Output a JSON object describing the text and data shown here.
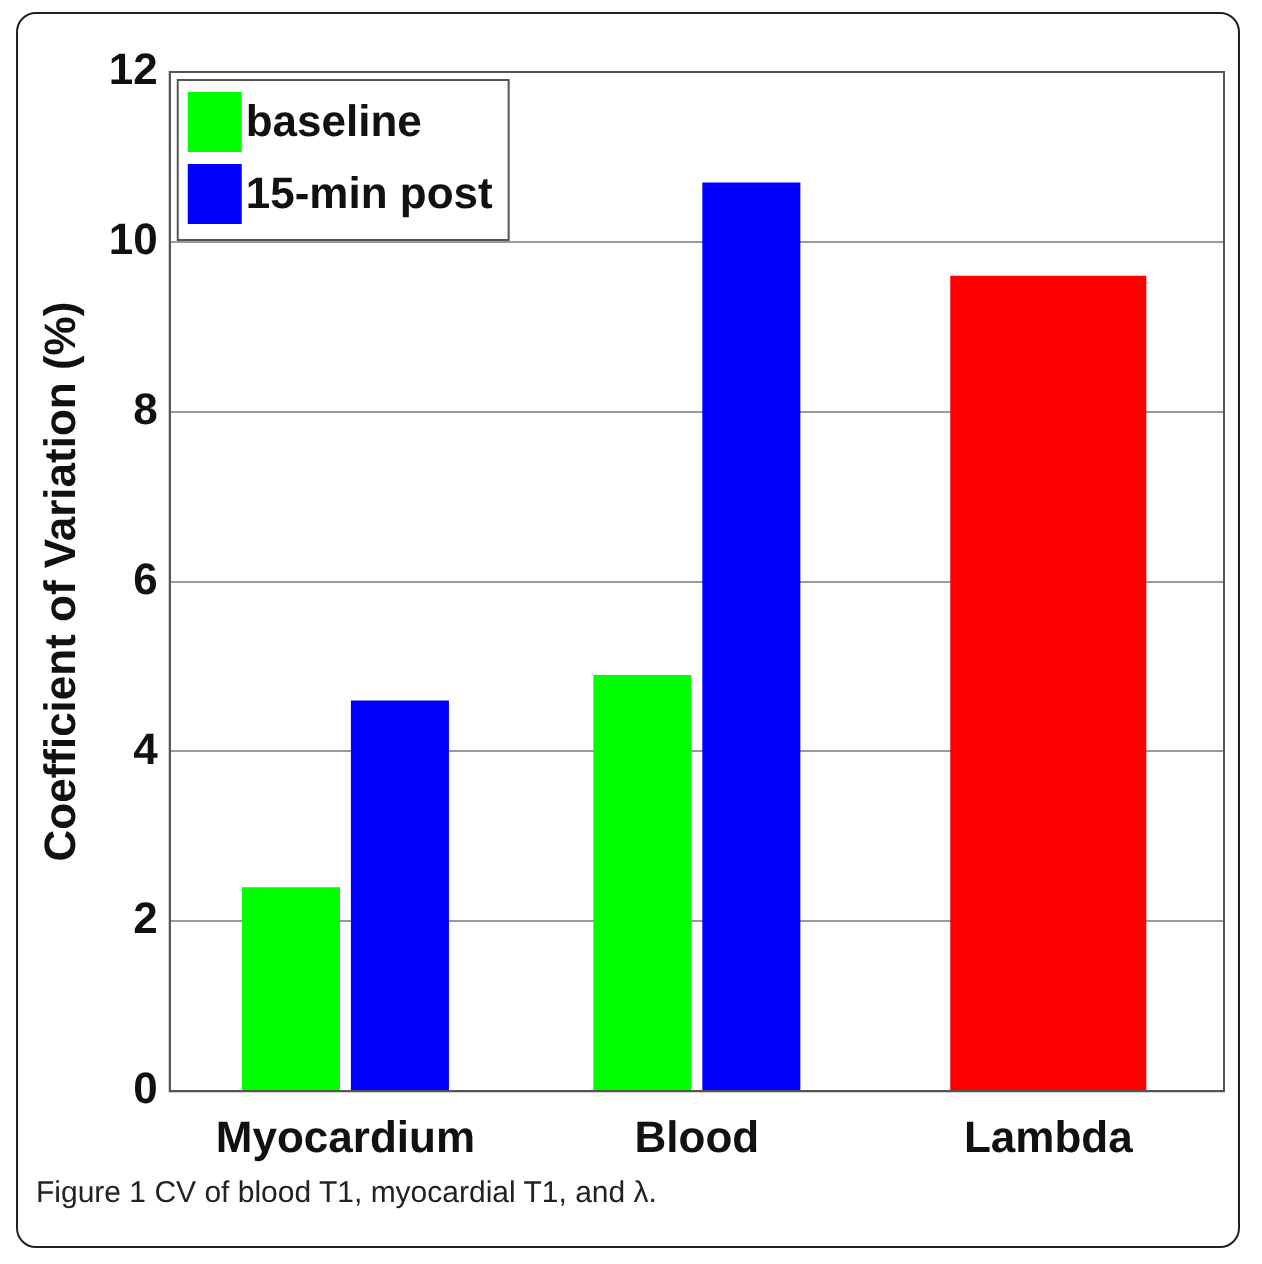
{
  "chart_data": {
    "type": "bar",
    "ylabel": "Coefficient of Variation (%)",
    "categories": [
      "Myocardium",
      "Blood",
      "Lambda"
    ],
    "series": [
      {
        "name": "baseline",
        "color": "#00ff00",
        "values": [
          2.4,
          4.9,
          null
        ]
      },
      {
        "name": "15-min post",
        "color": "#0000ff",
        "values": [
          4.6,
          10.7,
          null
        ]
      },
      {
        "color": "#ff0000",
        "values": [
          null,
          null,
          9.6
        ]
      }
    ],
    "ylim": [
      0,
      12
    ],
    "yticks": [
      0,
      2,
      4,
      6,
      8,
      10,
      12
    ],
    "grid": "y",
    "legend": "top left",
    "annotations": [
      "Figure 1 CV of blood T1, myocardial T1, and λ."
    ]
  }
}
